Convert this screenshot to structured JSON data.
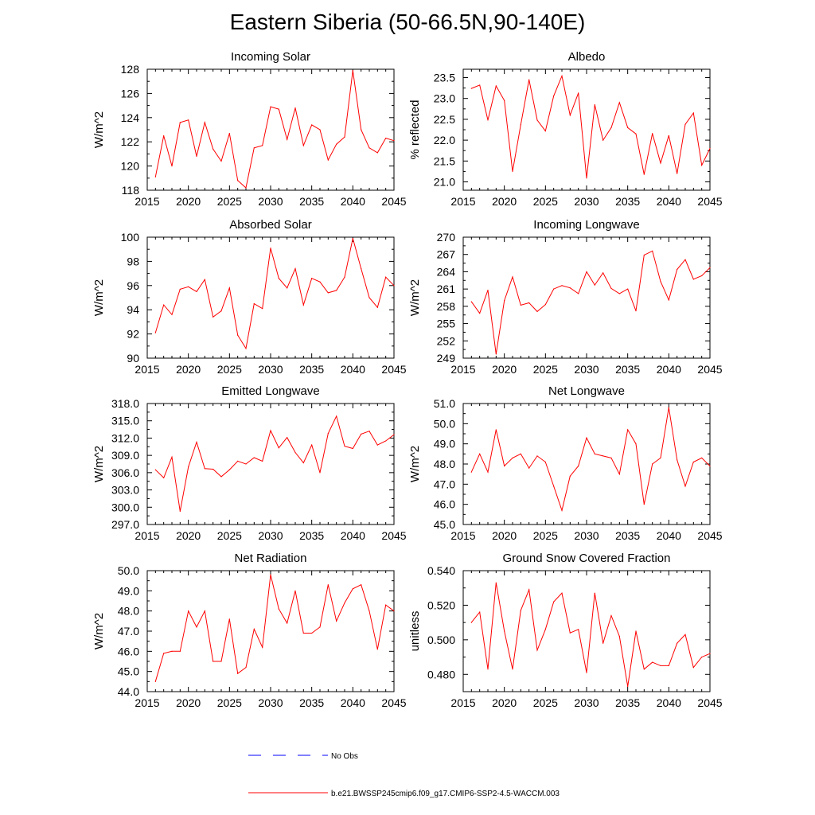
{
  "title": "Eastern Siberia (50-66.5N,90-140E)",
  "colors": {
    "series": "#ff0000",
    "obs": "#0000ff",
    "axis": "#000000"
  },
  "legend": {
    "obs_label": "No Obs",
    "model_label": "b.e21.BWSSP245cmip6.f09_g17.CMIP6-SSP2-4.5-WACCM.003"
  },
  "chart_data": [
    {
      "type": "line",
      "title": "Incoming Solar",
      "ylabel": "W/m^2",
      "xlim": [
        2015,
        2045
      ],
      "ylim": [
        118,
        128
      ],
      "xticks": [
        "2015",
        "2020",
        "2025",
        "2030",
        "2035",
        "2040",
        "2045"
      ],
      "yticks": [
        "118",
        "120",
        "122",
        "124",
        "126",
        "128"
      ],
      "x": [
        2016,
        2017,
        2018,
        2019,
        2020,
        2021,
        2022,
        2023,
        2024,
        2025,
        2026,
        2027,
        2028,
        2029,
        2030,
        2031,
        2032,
        2033,
        2034,
        2035,
        2036,
        2037,
        2038,
        2039,
        2040,
        2041,
        2042,
        2043,
        2044,
        2045
      ],
      "values": [
        119.1,
        122.5,
        120.0,
        123.6,
        123.8,
        120.8,
        123.6,
        121.4,
        120.4,
        122.7,
        118.8,
        118.2,
        121.5,
        121.7,
        124.9,
        124.7,
        122.2,
        124.8,
        121.7,
        123.4,
        123.0,
        120.5,
        121.8,
        122.4,
        127.9,
        123.0,
        121.5,
        121.1,
        122.3,
        122.1
      ]
    },
    {
      "type": "line",
      "title": "Albedo",
      "ylabel": "% reflected",
      "xlim": [
        2015,
        2045
      ],
      "ylim": [
        20.8,
        23.7
      ],
      "xticks": [
        "2015",
        "2020",
        "2025",
        "2030",
        "2035",
        "2040",
        "2045"
      ],
      "yticks": [
        "21.0",
        "21.5",
        "22.0",
        "22.5",
        "23.0",
        "23.5"
      ],
      "x": [
        2016,
        2017,
        2018,
        2019,
        2020,
        2021,
        2022,
        2023,
        2024,
        2025,
        2026,
        2027,
        2028,
        2029,
        2030,
        2031,
        2032,
        2033,
        2034,
        2035,
        2036,
        2037,
        2038,
        2039,
        2040,
        2041,
        2042,
        2043,
        2044,
        2045
      ],
      "values": [
        23.24,
        23.32,
        22.48,
        23.3,
        22.95,
        21.25,
        22.37,
        23.45,
        22.48,
        22.22,
        23.06,
        23.54,
        22.6,
        23.13,
        21.09,
        22.85,
        22.0,
        22.3,
        22.9,
        22.3,
        22.15,
        21.18,
        22.16,
        21.45,
        22.11,
        21.2,
        22.38,
        22.65,
        21.4,
        21.8
      ]
    },
    {
      "type": "line",
      "title": "Absorbed Solar",
      "ylabel": "W/m^2",
      "xlim": [
        2015,
        2045
      ],
      "ylim": [
        90,
        100
      ],
      "xticks": [
        "2015",
        "2020",
        "2025",
        "2030",
        "2035",
        "2040",
        "2045"
      ],
      "yticks": [
        "90",
        "92",
        "94",
        "96",
        "98",
        "100"
      ],
      "x": [
        2016,
        2017,
        2018,
        2019,
        2020,
        2021,
        2022,
        2023,
        2024,
        2025,
        2026,
        2027,
        2028,
        2029,
        2030,
        2031,
        2032,
        2033,
        2034,
        2035,
        2036,
        2037,
        2038,
        2039,
        2040,
        2041,
        2042,
        2043,
        2044,
        2045
      ],
      "values": [
        92.1,
        94.4,
        93.6,
        95.7,
        95.9,
        95.5,
        96.5,
        93.4,
        93.9,
        95.8,
        91.9,
        90.8,
        94.5,
        94.1,
        99.1,
        96.6,
        95.8,
        97.4,
        94.4,
        96.6,
        96.3,
        95.4,
        95.6,
        96.7,
        99.9,
        97.4,
        95.0,
        94.2,
        96.7,
        96.0
      ]
    },
    {
      "type": "line",
      "title": "Incoming Longwave",
      "ylabel": "W/m^2",
      "xlim": [
        2015,
        2045
      ],
      "ylim": [
        249,
        270
      ],
      "xticks": [
        "2015",
        "2020",
        "2025",
        "2030",
        "2035",
        "2040",
        "2045"
      ],
      "yticks": [
        "249",
        "252",
        "255",
        "258",
        "261",
        "264",
        "267",
        "270"
      ],
      "x": [
        2016,
        2017,
        2018,
        2019,
        2020,
        2021,
        2022,
        2023,
        2024,
        2025,
        2026,
        2027,
        2028,
        2029,
        2030,
        2031,
        2032,
        2033,
        2034,
        2035,
        2036,
        2037,
        2038,
        2039,
        2040,
        2041,
        2042,
        2043,
        2044,
        2045
      ],
      "values": [
        258.8,
        256.8,
        260.8,
        249.7,
        259.0,
        263.1,
        258.2,
        258.6,
        257.1,
        258.3,
        261.0,
        261.6,
        261.2,
        260.2,
        264.0,
        261.7,
        263.8,
        261.1,
        260.2,
        261.0,
        257.2,
        266.9,
        267.6,
        262.3,
        259.1,
        264.4,
        266.1,
        262.7,
        263.3,
        264.7
      ]
    },
    {
      "type": "line",
      "title": "Emitted Longwave",
      "ylabel": "W/m^2",
      "xlim": [
        2015,
        2045
      ],
      "ylim": [
        297,
        318
      ],
      "xticks": [
        "2015",
        "2020",
        "2025",
        "2030",
        "2035",
        "2040",
        "2045"
      ],
      "yticks": [
        "297.0",
        "300.0",
        "303.0",
        "306.0",
        "309.0",
        "312.0",
        "315.0",
        "318.0"
      ],
      "x": [
        2016,
        2017,
        2018,
        2019,
        2020,
        2021,
        2022,
        2023,
        2024,
        2025,
        2026,
        2027,
        2028,
        2029,
        2030,
        2031,
        2032,
        2033,
        2034,
        2035,
        2036,
        2037,
        2038,
        2039,
        2040,
        2041,
        2042,
        2043,
        2044,
        2045
      ],
      "values": [
        306.5,
        305.1,
        308.7,
        299.3,
        307.0,
        311.3,
        306.7,
        306.6,
        305.3,
        306.5,
        308.0,
        307.5,
        308.6,
        308.0,
        313.3,
        310.3,
        312.1,
        309.5,
        307.7,
        310.8,
        306.0,
        312.8,
        315.8,
        310.6,
        310.2,
        312.7,
        313.2,
        310.8,
        311.5,
        312.6
      ]
    },
    {
      "type": "line",
      "title": "Net Longwave",
      "ylabel": "W/m^2",
      "xlim": [
        2015,
        2045
      ],
      "ylim": [
        45,
        51
      ],
      "xticks": [
        "2015",
        "2020",
        "2025",
        "2030",
        "2035",
        "2040",
        "2045"
      ],
      "yticks": [
        "45.0",
        "46.0",
        "47.0",
        "48.0",
        "49.0",
        "50.0",
        "51.0"
      ],
      "x": [
        2016,
        2017,
        2018,
        2019,
        2020,
        2021,
        2022,
        2023,
        2024,
        2025,
        2026,
        2027,
        2028,
        2029,
        2030,
        2031,
        2032,
        2033,
        2034,
        2035,
        2036,
        2037,
        2038,
        2039,
        2040,
        2041,
        2042,
        2043,
        2044,
        2045
      ],
      "values": [
        47.6,
        48.5,
        47.6,
        49.7,
        47.9,
        48.3,
        48.5,
        47.8,
        48.4,
        48.1,
        46.9,
        45.7,
        47.4,
        47.9,
        49.3,
        48.5,
        48.4,
        48.3,
        47.5,
        49.7,
        49.0,
        46.0,
        48.0,
        48.3,
        50.8,
        48.2,
        46.9,
        48.1,
        48.3,
        47.9
      ]
    },
    {
      "type": "line",
      "title": "Net Radiation",
      "ylabel": "W/m^2",
      "xlim": [
        2015,
        2045
      ],
      "ylim": [
        44,
        50
      ],
      "xticks": [
        "2015",
        "2020",
        "2025",
        "2030",
        "2035",
        "2040",
        "2045"
      ],
      "yticks": [
        "44.0",
        "45.0",
        "46.0",
        "47.0",
        "48.0",
        "49.0",
        "50.0"
      ],
      "x": [
        2016,
        2017,
        2018,
        2019,
        2020,
        2021,
        2022,
        2023,
        2024,
        2025,
        2026,
        2027,
        2028,
        2029,
        2030,
        2031,
        2032,
        2033,
        2034,
        2035,
        2036,
        2037,
        2038,
        2039,
        2040,
        2041,
        2042,
        2043,
        2044,
        2045
      ],
      "values": [
        44.5,
        45.9,
        46.0,
        46.0,
        48.0,
        47.2,
        48.0,
        45.5,
        45.5,
        47.6,
        44.9,
        45.2,
        47.1,
        46.2,
        49.8,
        48.1,
        47.4,
        49.0,
        46.9,
        46.9,
        47.2,
        49.3,
        47.5,
        48.4,
        49.1,
        49.3,
        48.0,
        46.1,
        48.3,
        48.0
      ]
    },
    {
      "type": "line",
      "title": "Ground Snow Covered Fraction",
      "ylabel": "unitless",
      "xlim": [
        2015,
        2045
      ],
      "ylim": [
        0.47,
        0.54
      ],
      "xticks": [
        "2015",
        "2020",
        "2025",
        "2030",
        "2035",
        "2040",
        "2045"
      ],
      "yticks": [
        "0.480",
        "0.500",
        "0.520",
        "0.540"
      ],
      "ytick_values": [
        0.48,
        0.5,
        0.52,
        0.54
      ],
      "x": [
        2016,
        2017,
        2018,
        2019,
        2020,
        2021,
        2022,
        2023,
        2024,
        2025,
        2026,
        2027,
        2028,
        2029,
        2030,
        2031,
        2032,
        2033,
        2034,
        2035,
        2036,
        2037,
        2038,
        2039,
        2040,
        2041,
        2042,
        2043,
        2044,
        2045
      ],
      "values": [
        0.51,
        0.516,
        0.483,
        0.533,
        0.505,
        0.483,
        0.517,
        0.529,
        0.494,
        0.506,
        0.522,
        0.527,
        0.504,
        0.506,
        0.481,
        0.527,
        0.498,
        0.514,
        0.502,
        0.473,
        0.505,
        0.483,
        0.487,
        0.485,
        0.485,
        0.498,
        0.503,
        0.484,
        0.49,
        0.492
      ]
    }
  ]
}
